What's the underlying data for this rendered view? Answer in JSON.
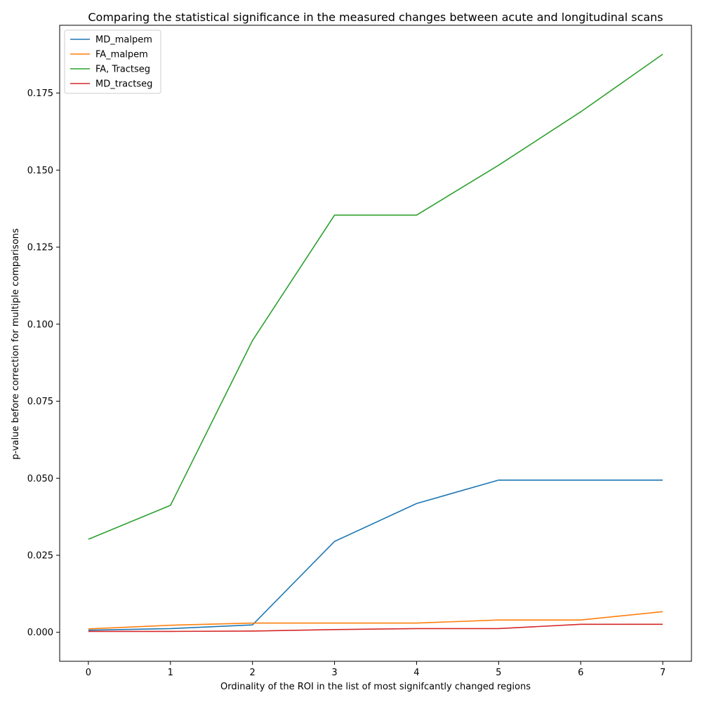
{
  "chart_data": {
    "type": "line",
    "title": "Comparing the statistical significance in the measured changes between acute and longitudinal scans",
    "xlabel": "Ordinality of the ROI in the list of most signifcantly changed regions",
    "ylabel": "p-value before correction for multiple comparisons",
    "x": [
      0,
      1,
      2,
      3,
      4,
      5,
      6,
      7
    ],
    "xlim": [
      -0.35,
      7.35
    ],
    "ylim": [
      -0.0094,
      0.197
    ],
    "xticks": [
      0,
      1,
      2,
      3,
      4,
      5,
      6,
      7
    ],
    "xtick_labels": [
      "0",
      "1",
      "2",
      "3",
      "4",
      "5",
      "6",
      "7"
    ],
    "yticks": [
      0.0,
      0.025,
      0.05,
      0.075,
      0.1,
      0.125,
      0.15,
      0.175
    ],
    "ytick_labels": [
      "0.000",
      "0.025",
      "0.050",
      "0.075",
      "0.100",
      "0.125",
      "0.150",
      "0.175"
    ],
    "grid": false,
    "legend_position": "top-left",
    "series": [
      {
        "name": "MD_malpem",
        "color": "#1f77b4",
        "values": [
          0.0007,
          0.0012,
          0.0024,
          0.0295,
          0.0418,
          0.0494,
          0.0494,
          0.0494
        ]
      },
      {
        "name": "FA_malpem",
        "color": "#ff7f0e",
        "values": [
          0.0011,
          0.0023,
          0.003,
          0.003,
          0.003,
          0.004,
          0.004,
          0.0067
        ]
      },
      {
        "name": "FA, Tractseg",
        "color": "#2ca02c",
        "values": [
          0.0302,
          0.0412,
          0.0947,
          0.1354,
          0.1354,
          0.1516,
          0.1689,
          0.1876
        ]
      },
      {
        "name": "MD_tractseg",
        "color": "#d62728",
        "values": [
          0.0003,
          0.0003,
          0.0004,
          0.0009,
          0.0012,
          0.0012,
          0.0026,
          0.0026
        ]
      }
    ]
  }
}
